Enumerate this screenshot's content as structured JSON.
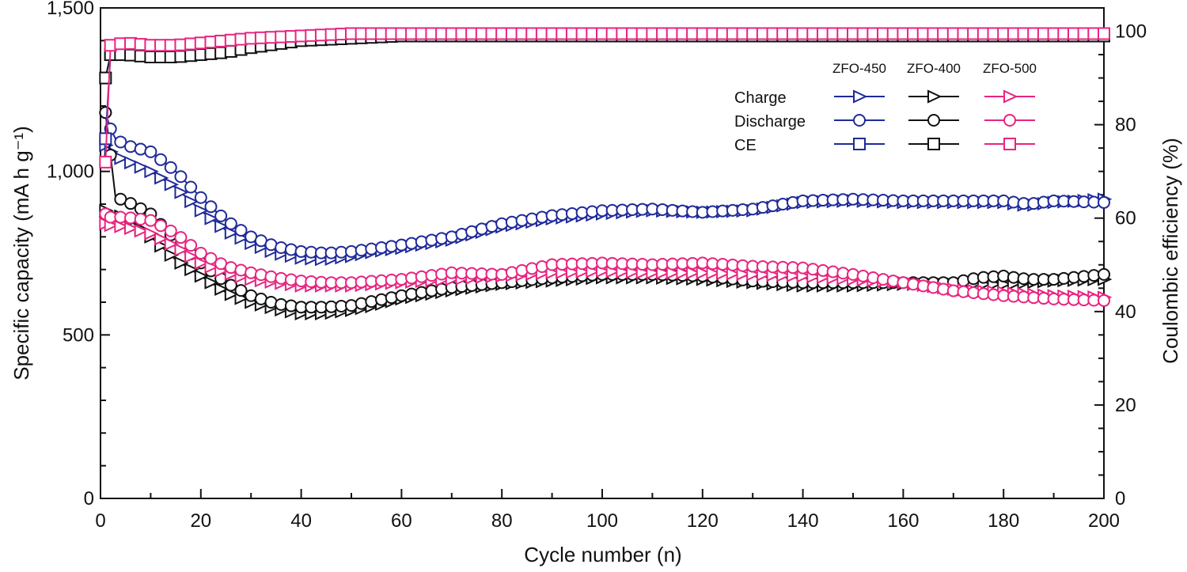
{
  "chart_data": {
    "type": "scatter",
    "xlabel": "Cycle number (n)",
    "ylabel_left": "Specific capacity (mA h g⁻¹)",
    "ylabel_right": "Coulombic efficiency (%)",
    "xlim": [
      0,
      200
    ],
    "ylim_left": [
      0,
      1500
    ],
    "ylim_right": [
      0,
      105
    ],
    "x_ticks": [
      0,
      20,
      40,
      60,
      80,
      100,
      120,
      140,
      160,
      180,
      200
    ],
    "x_tick_labels": [
      "0",
      "20",
      "40",
      "60",
      "80",
      "100",
      "120",
      "140",
      "160",
      "180",
      "200"
    ],
    "y_left_ticks": [
      0,
      500,
      1000,
      1500
    ],
    "y_left_tick_labels": [
      "0",
      "500",
      "1,000",
      "1,500"
    ],
    "y_right_ticks": [
      0,
      20,
      40,
      60,
      80,
      100
    ],
    "y_right_tick_labels": [
      "0",
      "20",
      "40",
      "60",
      "80",
      "100"
    ],
    "grid": false,
    "legend": {
      "placement": "top-right",
      "columns": [
        "ZFO-450",
        "ZFO-400",
        "ZFO-500"
      ],
      "rows": [
        {
          "label": "Charge",
          "marker": "triangle"
        },
        {
          "label": "Discharge",
          "marker": "circle"
        },
        {
          "label": "CE",
          "marker": "square"
        }
      ]
    },
    "series": [
      {
        "name": "ZFO-450",
        "kind": "charge",
        "axis": "left",
        "marker": "triangle",
        "color": "#1f2a9a",
        "x": [
          1,
          2,
          4,
          10,
          15,
          20,
          25,
          30,
          35,
          40,
          45,
          50,
          55,
          60,
          70,
          80,
          90,
          100,
          110,
          120,
          130,
          140,
          150,
          160,
          170,
          180,
          185,
          190,
          200
        ],
        "y": [
          1080,
          1060,
          1040,
          1000,
          950,
          880,
          820,
          780,
          750,
          735,
          730,
          740,
          755,
          765,
          790,
          830,
          855,
          870,
          880,
          875,
          880,
          905,
          910,
          905,
          905,
          905,
          895,
          905,
          915
        ]
      },
      {
        "name": "ZFO-450",
        "kind": "discharge",
        "axis": "left",
        "marker": "circle",
        "color": "#1f2a9a",
        "x": [
          1,
          2,
          3,
          5,
          10,
          15,
          20,
          25,
          30,
          35,
          40,
          45,
          50,
          55,
          60,
          70,
          80,
          90,
          100,
          110,
          120,
          130,
          140,
          150,
          160,
          170,
          180,
          185,
          190,
          200
        ],
        "y": [
          1180,
          1130,
          1100,
          1080,
          1060,
          1000,
          920,
          850,
          800,
          770,
          755,
          750,
          755,
          765,
          775,
          800,
          840,
          865,
          880,
          885,
          875,
          885,
          910,
          915,
          910,
          910,
          910,
          900,
          910,
          905
        ]
      },
      {
        "name": "ZFO-400",
        "kind": "charge",
        "axis": "left",
        "marker": "triangle",
        "color": "#111111",
        "x": [
          1,
          2,
          5,
          10,
          15,
          20,
          25,
          30,
          35,
          40,
          45,
          50,
          55,
          60,
          70,
          80,
          90,
          100,
          110,
          120,
          130,
          140,
          150,
          160,
          170,
          180,
          190,
          200
        ],
        "y": [
          880,
          870,
          860,
          800,
          730,
          680,
          630,
          600,
          580,
          565,
          565,
          575,
          590,
          610,
          635,
          655,
          665,
          675,
          675,
          670,
          660,
          650,
          650,
          655,
          655,
          655,
          665,
          670
        ]
      },
      {
        "name": "ZFO-400",
        "kind": "discharge",
        "axis": "left",
        "marker": "circle",
        "color": "#111111",
        "x": [
          1,
          3,
          5,
          10,
          15,
          20,
          25,
          30,
          35,
          40,
          45,
          50,
          55,
          60,
          70,
          80,
          90,
          100,
          110,
          120,
          130,
          140,
          150,
          160,
          170,
          175,
          180,
          185,
          190,
          200
        ],
        "y": [
          1180,
          920,
          910,
          870,
          790,
          720,
          660,
          620,
          595,
          585,
          585,
          590,
          605,
          620,
          645,
          660,
          675,
          685,
          685,
          680,
          665,
          660,
          660,
          660,
          660,
          675,
          680,
          670,
          670,
          685
        ]
      },
      {
        "name": "ZFO-500",
        "kind": "charge",
        "axis": "left",
        "marker": "triangle",
        "color": "#e8247f",
        "x": [
          1,
          2,
          5,
          10,
          15,
          20,
          25,
          30,
          35,
          40,
          45,
          50,
          55,
          60,
          70,
          80,
          90,
          100,
          110,
          120,
          130,
          140,
          150,
          160,
          170,
          180,
          190,
          200
        ],
        "y": [
          840,
          835,
          830,
          810,
          770,
          720,
          690,
          670,
          660,
          650,
          650,
          650,
          655,
          660,
          670,
          680,
          690,
          695,
          690,
          690,
          685,
          680,
          670,
          660,
          640,
          630,
          620,
          615
        ]
      },
      {
        "name": "ZFO-500",
        "kind": "discharge",
        "axis": "left",
        "marker": "circle",
        "color": "#e8247f",
        "x": [
          1,
          2,
          5,
          10,
          15,
          20,
          25,
          30,
          35,
          40,
          45,
          50,
          55,
          60,
          70,
          80,
          90,
          100,
          110,
          120,
          130,
          140,
          150,
          160,
          170,
          180,
          190,
          200
        ],
        "y": [
          870,
          860,
          860,
          850,
          810,
          750,
          710,
          690,
          675,
          665,
          660,
          660,
          665,
          670,
          690,
          685,
          715,
          720,
          715,
          720,
          710,
          705,
          685,
          660,
          635,
          620,
          610,
          605
        ]
      },
      {
        "name": "ZFO-450",
        "kind": "ce",
        "axis": "right",
        "marker": "square",
        "color": "#1f2a9a",
        "x": [
          1,
          2,
          5,
          10,
          15,
          20,
          25,
          30,
          40,
          50,
          60,
          80,
          100,
          120,
          140,
          160,
          180,
          200
        ],
        "y": [
          77,
          95,
          96,
          95.5,
          95.5,
          96,
          96.5,
          97,
          98.5,
          99,
          99,
          99,
          99,
          99,
          99,
          99,
          99,
          99
        ]
      },
      {
        "name": "ZFO-400",
        "kind": "ce",
        "axis": "right",
        "marker": "square",
        "color": "#111111",
        "x": [
          1,
          2,
          5,
          10,
          15,
          20,
          25,
          30,
          40,
          50,
          60,
          80,
          100,
          120,
          140,
          160,
          180,
          200
        ],
        "y": [
          90,
          95,
          95,
          94.5,
          94.5,
          95,
          95.5,
          96.5,
          98,
          98.5,
          99,
          99,
          99,
          99,
          99,
          99,
          99,
          99
        ]
      },
      {
        "name": "ZFO-500",
        "kind": "ce",
        "axis": "right",
        "marker": "square",
        "color": "#e8247f",
        "x": [
          1,
          2,
          5,
          10,
          15,
          20,
          30,
          40,
          50,
          60,
          80,
          100,
          120,
          140,
          160,
          180,
          200
        ],
        "y": [
          72,
          97,
          97.5,
          97,
          97,
          97.5,
          98.5,
          99,
          99.5,
          99.5,
          99.5,
          99.5,
          99.5,
          99.5,
          99.5,
          99.5,
          99.5
        ]
      }
    ]
  }
}
